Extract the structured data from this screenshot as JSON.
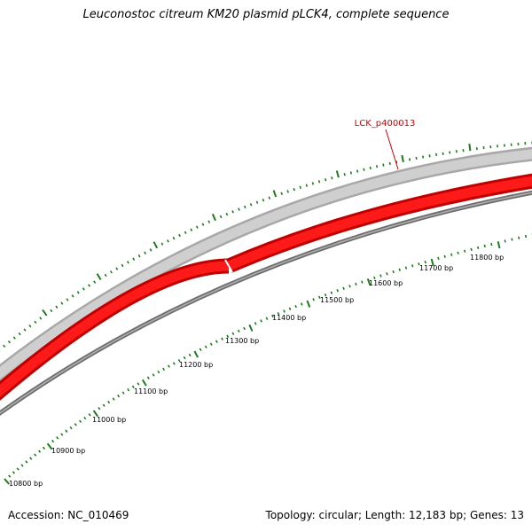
{
  "title": "Leuconostoc citreum KM20 plasmid pLCK4, complete sequence",
  "accession": "Accession: NC_010469",
  "summary": "Topology: circular; Length: 12,183 bp; Genes: 13",
  "colors": {
    "gene": "#ff0000",
    "gene_edge": "#b40000",
    "ruler": "#1f7a1f",
    "outer_track": "#c8c8c8",
    "backbone": "#808080",
    "label": "#cc0000"
  },
  "gene_label": "LCK_p400013",
  "tick_labels": [
    "10800 bp",
    "10900 bp",
    "11000 bp",
    "11100 bp",
    "11200 bp",
    "11300 bp",
    "11400 bp",
    "11500 bp",
    "11600 bp",
    "11700 bp",
    "11800 bp"
  ]
}
